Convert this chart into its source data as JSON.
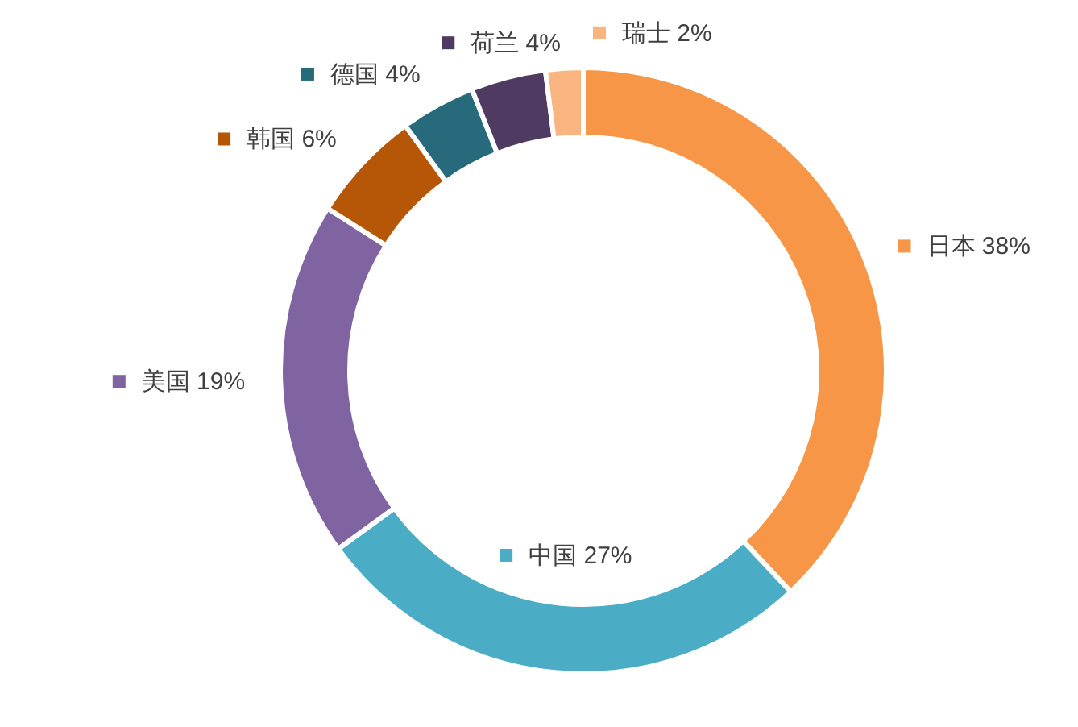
{
  "chart_data": {
    "type": "donut",
    "categories": [
      "日本",
      "中国",
      "美国",
      "韩国",
      "德国",
      "荷兰",
      "瑞士"
    ],
    "values": [
      38,
      27,
      19,
      6,
      4,
      4,
      2
    ],
    "value_labels": [
      "38%",
      "27%",
      "19%",
      "6%",
      "4%",
      "4%",
      "2%"
    ],
    "legend": "top left",
    "colors": [
      "#f79646",
      "#4bacc6",
      "#8064a2",
      "#b65708",
      "#276a7c",
      "#4f3b62",
      "#fab47f"
    ]
  }
}
